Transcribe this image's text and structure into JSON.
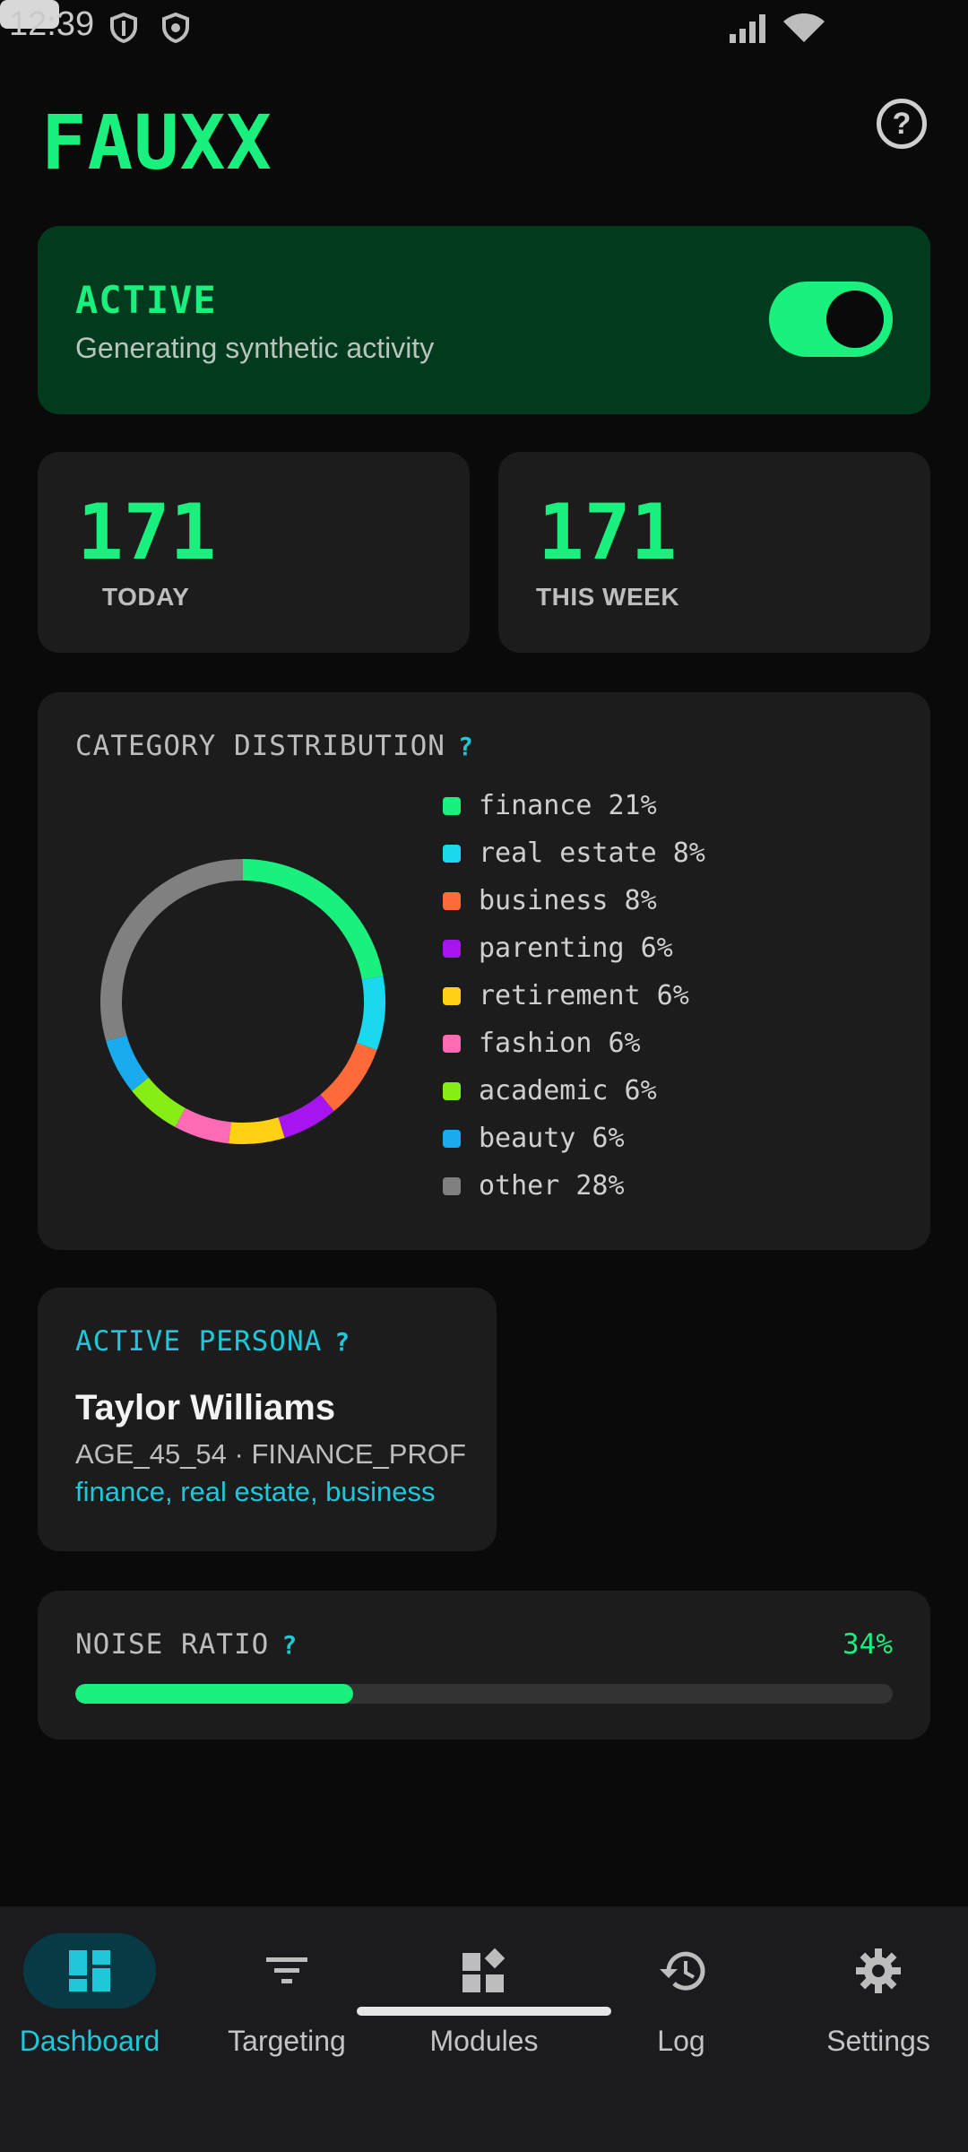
{
  "status_bar": {
    "time": "12:39"
  },
  "header": {
    "title": "FAUXX",
    "help_icon": "help-circle-icon"
  },
  "active_card": {
    "label": "ACTIVE",
    "subtitle": "Generating synthetic activity",
    "toggle_on": true
  },
  "stats": [
    {
      "value": "171",
      "label": "TODAY"
    },
    {
      "value": "171",
      "label": "THIS WEEK"
    }
  ],
  "category": {
    "title": "CATEGORY DISTRIBUTION",
    "help": "?",
    "chart_data": {
      "type": "pie",
      "donut": true,
      "categories": [
        "finance",
        "real estate",
        "business",
        "parenting",
        "retirement",
        "fashion",
        "academic",
        "beauty",
        "other"
      ],
      "values": [
        21,
        8,
        8,
        6,
        6,
        6,
        6,
        6,
        28
      ],
      "labels": [
        "finance 21%",
        "real estate 8%",
        "business 8%",
        "parenting 6%",
        "retirement 6%",
        "fashion 6%",
        "academic 6%",
        "beauty 6%",
        "other 28%"
      ],
      "colors": [
        "#1af07e",
        "#1ad8ee",
        "#ff6a3a",
        "#a614f0",
        "#ffd014",
        "#ff6ab4",
        "#86ee14",
        "#1aaaee",
        "#808080"
      ],
      "legend_position": "right"
    }
  },
  "persona": {
    "title": "ACTIVE PERSONA",
    "help": "?",
    "name": "Taylor Williams",
    "meta": "AGE_45_54 · FINANCE_PROF",
    "interests": "finance, real estate, business"
  },
  "noise": {
    "title": "NOISE RATIO",
    "help": "?",
    "percent_label": "34%",
    "value": 0.34
  },
  "nav": [
    {
      "label": "Dashboard",
      "icon": "dashboard-icon",
      "selected": true
    },
    {
      "label": "Targeting",
      "icon": "filter-icon",
      "selected": false
    },
    {
      "label": "Modules",
      "icon": "widgets-icon",
      "selected": false
    },
    {
      "label": "Log",
      "icon": "history-icon",
      "selected": false
    },
    {
      "label": "Settings",
      "icon": "gear-icon",
      "selected": false
    }
  ]
}
